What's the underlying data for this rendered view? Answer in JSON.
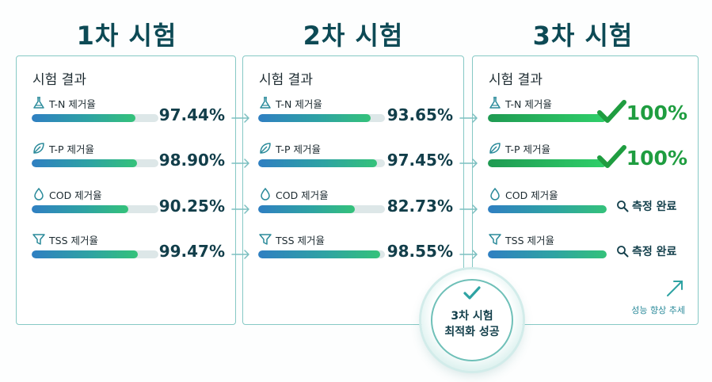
{
  "rounds": [
    {
      "title": "1차 시험",
      "panel_heading": "시험 결과",
      "rows": [
        {
          "icon": "flask-icon",
          "label": "T-N 제거율",
          "value": "97.44%",
          "progress": 0.82
        },
        {
          "icon": "leaf-icon",
          "label": "T-P 제거율",
          "value": "98.90%",
          "progress": 0.83
        },
        {
          "icon": "drop-icon",
          "label": "COD 제거율",
          "value": "90.25%",
          "progress": 0.76
        },
        {
          "icon": "funnel-icon",
          "label": "TSS 제거율",
          "value": "99.47%",
          "progress": 0.84
        }
      ]
    },
    {
      "title": "2차 시험",
      "panel_heading": "시험 결과",
      "rows": [
        {
          "icon": "flask-icon",
          "label": "T-N 제거율",
          "value": "93.65%",
          "progress": 0.89
        },
        {
          "icon": "leaf-icon",
          "label": "T-P 제거율",
          "value": "97.45%",
          "progress": 0.94
        },
        {
          "icon": "drop-icon",
          "label": "COD 제거율",
          "value": "82.73%",
          "progress": 0.76
        },
        {
          "icon": "funnel-icon",
          "label": "TSS 제거율",
          "value": "98.55%",
          "progress": 0.96
        }
      ]
    },
    {
      "title": "3차 시험",
      "panel_heading": "시험 결과",
      "rows": [
        {
          "icon": "flask-icon",
          "label": "T-N 제거율",
          "value": "100%",
          "status": "check",
          "progress": 1.0
        },
        {
          "icon": "leaf-icon",
          "label": "T-P 제거율",
          "value": "100%",
          "status": "check",
          "progress": 1.0
        },
        {
          "icon": "drop-icon",
          "label": "COD 제거율",
          "value": "측정 완료",
          "status": "measured",
          "progress": 1.0
        },
        {
          "icon": "funnel-icon",
          "label": "TSS 제거율",
          "value": "측정 완료",
          "status": "measured",
          "progress": 1.0
        }
      ]
    }
  ],
  "trend_label": "성능 향상 추세",
  "badge": {
    "line1": "3차 시험",
    "line2": "최적화 성공"
  },
  "colors": {
    "accent": "#2ea3a3",
    "success": "#1f9d40",
    "title": "#0d4a55"
  }
}
